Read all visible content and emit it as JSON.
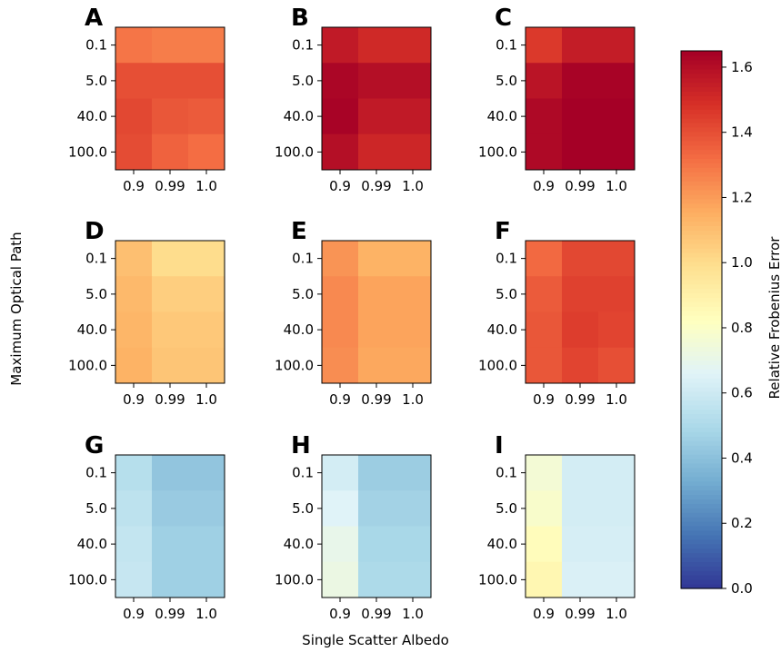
{
  "figure": {
    "ylabel": "Maximum Optical Path",
    "xlabel": "Single Scatter Albedo",
    "colorbar_label": "Relative Frobenius Error"
  },
  "chart_data": [
    {
      "type": "heatmap",
      "panel": "A",
      "x": [
        "0.9",
        "0.99",
        "1.0"
      ],
      "y": [
        "0.1",
        "5.0",
        "40.0",
        "100.0"
      ],
      "values": [
        [
          1.3,
          1.28,
          1.28
        ],
        [
          1.4,
          1.4,
          1.4
        ],
        [
          1.42,
          1.38,
          1.37
        ],
        [
          1.41,
          1.35,
          1.32
        ]
      ]
    },
    {
      "type": "heatmap",
      "panel": "B",
      "x": [
        "0.9",
        "0.99",
        "1.0"
      ],
      "y": [
        "0.1",
        "5.0",
        "40.0",
        "100.0"
      ],
      "values": [
        [
          1.56,
          1.51,
          1.51
        ],
        [
          1.63,
          1.6,
          1.6
        ],
        [
          1.64,
          1.56,
          1.56
        ],
        [
          1.6,
          1.52,
          1.52
        ]
      ]
    },
    {
      "type": "heatmap",
      "panel": "C",
      "x": [
        "0.9",
        "0.99",
        "1.0"
      ],
      "y": [
        "0.1",
        "5.0",
        "40.0",
        "100.0"
      ],
      "values": [
        [
          1.46,
          1.55,
          1.55
        ],
        [
          1.58,
          1.64,
          1.64
        ],
        [
          1.62,
          1.65,
          1.65
        ],
        [
          1.62,
          1.65,
          1.65
        ]
      ]
    },
    {
      "type": "heatmap",
      "panel": "D",
      "x": [
        "0.9",
        "0.99",
        "1.0"
      ],
      "y": [
        "0.1",
        "5.0",
        "40.0",
        "100.0"
      ],
      "values": [
        [
          1.1,
          1.0,
          1.0
        ],
        [
          1.12,
          1.05,
          1.05
        ],
        [
          1.13,
          1.07,
          1.07
        ],
        [
          1.14,
          1.08,
          1.08
        ]
      ]
    },
    {
      "type": "heatmap",
      "panel": "E",
      "x": [
        "0.9",
        "0.99",
        "1.0"
      ],
      "y": [
        "0.1",
        "5.0",
        "40.0",
        "100.0"
      ],
      "values": [
        [
          1.22,
          1.14,
          1.14
        ],
        [
          1.25,
          1.18,
          1.18
        ],
        [
          1.25,
          1.18,
          1.18
        ],
        [
          1.24,
          1.17,
          1.17
        ]
      ]
    },
    {
      "type": "heatmap",
      "panel": "F",
      "x": [
        "0.9",
        "0.99",
        "1.0"
      ],
      "y": [
        "0.1",
        "5.0",
        "40.0",
        "100.0"
      ],
      "values": [
        [
          1.33,
          1.42,
          1.42
        ],
        [
          1.37,
          1.44,
          1.44
        ],
        [
          1.38,
          1.45,
          1.43
        ],
        [
          1.38,
          1.43,
          1.4
        ]
      ]
    },
    {
      "type": "heatmap",
      "panel": "G",
      "x": [
        "0.9",
        "0.99",
        "1.0"
      ],
      "y": [
        "0.1",
        "5.0",
        "40.0",
        "100.0"
      ],
      "values": [
        [
          0.53,
          0.42,
          0.42
        ],
        [
          0.55,
          0.44,
          0.44
        ],
        [
          0.57,
          0.46,
          0.46
        ],
        [
          0.58,
          0.46,
          0.46
        ]
      ]
    },
    {
      "type": "heatmap",
      "panel": "H",
      "x": [
        "0.9",
        "0.99",
        "1.0"
      ],
      "y": [
        "0.1",
        "5.0",
        "40.0",
        "100.0"
      ],
      "values": [
        [
          0.62,
          0.45,
          0.45
        ],
        [
          0.66,
          0.47,
          0.47
        ],
        [
          0.7,
          0.49,
          0.49
        ],
        [
          0.72,
          0.5,
          0.5
        ]
      ]
    },
    {
      "type": "heatmap",
      "panel": "I",
      "x": [
        "0.9",
        "0.99",
        "1.0"
      ],
      "y": [
        "0.1",
        "5.0",
        "40.0",
        "100.0"
      ],
      "values": [
        [
          0.76,
          0.62,
          0.62
        ],
        [
          0.79,
          0.62,
          0.62
        ],
        [
          0.84,
          0.63,
          0.63
        ],
        [
          0.87,
          0.64,
          0.64
        ]
      ]
    }
  ],
  "colorbar": {
    "vmin": 0.0,
    "vmax": 1.65,
    "ticks": [
      "0.0",
      "0.2",
      "0.4",
      "0.6",
      "0.8",
      "1.0",
      "1.2",
      "1.4",
      "1.6"
    ],
    "colormap": "RdYlBu_r",
    "stops": [
      "#313695",
      "#4575b4",
      "#74add1",
      "#abd9e9",
      "#e0f3f8",
      "#ffffbf",
      "#fee090",
      "#fdae61",
      "#f46d43",
      "#d73027",
      "#a50026"
    ]
  }
}
